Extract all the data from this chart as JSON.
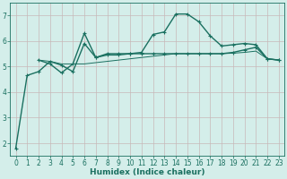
{
  "xlabel": "Humidex (Indice chaleur)",
  "background_color": "#d4eeea",
  "grid_color": "#c8b8b8",
  "line_color": "#1a7060",
  "x_values": [
    0,
    1,
    2,
    3,
    4,
    5,
    6,
    7,
    8,
    9,
    10,
    11,
    12,
    13,
    14,
    15,
    16,
    17,
    18,
    19,
    20,
    21,
    22,
    23
  ],
  "line1_y": [
    1.8,
    4.65,
    4.8,
    5.2,
    5.05,
    4.8,
    5.9,
    5.35,
    5.45,
    5.45,
    5.5,
    5.55,
    6.25,
    6.35,
    7.05,
    7.05,
    6.75,
    6.2,
    5.8,
    5.85,
    5.9,
    5.85,
    5.3,
    5.25
  ],
  "line2_y": [
    null,
    null,
    5.25,
    5.1,
    4.75,
    5.1,
    6.3,
    5.35,
    5.5,
    5.5,
    5.5,
    5.5,
    5.5,
    5.5,
    5.5,
    5.5,
    5.5,
    5.5,
    5.5,
    5.55,
    5.65,
    5.75,
    5.3,
    5.25
  ],
  "line3_y": [
    null,
    null,
    5.25,
    5.2,
    5.1,
    5.1,
    5.1,
    5.15,
    5.2,
    5.25,
    5.3,
    5.35,
    5.4,
    5.45,
    5.5,
    5.5,
    5.5,
    5.5,
    5.5,
    5.52,
    5.55,
    5.6,
    5.3,
    5.25
  ],
  "ylim": [
    1.5,
    7.5
  ],
  "xlim": [
    -0.5,
    23.5
  ],
  "yticks": [
    2,
    3,
    4,
    5,
    6,
    7
  ],
  "xticks": [
    0,
    1,
    2,
    3,
    4,
    5,
    6,
    7,
    8,
    9,
    10,
    11,
    12,
    13,
    14,
    15,
    16,
    17,
    18,
    19,
    20,
    21,
    22,
    23
  ],
  "marker": "+",
  "marker_size": 3.5,
  "line_width": 1.0,
  "font_color": "#1a7060",
  "tick_font_size": 5.5,
  "xlabel_font_size": 6.5,
  "xlabel_font_weight": "bold"
}
